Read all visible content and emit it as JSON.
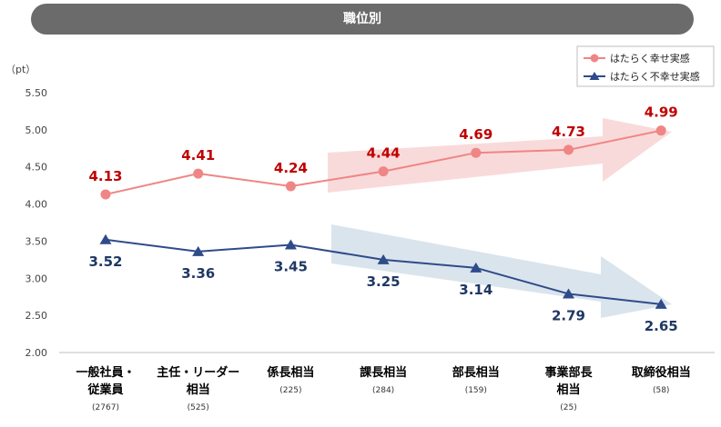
{
  "header": {
    "title": "職位別"
  },
  "chart_data": {
    "type": "line",
    "title": "職位別",
    "ylabel": "（pt）",
    "ylim": [
      2.0,
      5.5
    ],
    "yticks": [
      "5.50",
      "5.00",
      "4.50",
      "4.00",
      "3.50",
      "3.00",
      "2.50",
      "2.00"
    ],
    "categories": [
      {
        "lines": [
          "一般社員・",
          "従業員"
        ],
        "count": "(2767)"
      },
      {
        "lines": [
          "主任・リーダー",
          "相当"
        ],
        "count": "(525)"
      },
      {
        "lines": [
          "係長相当"
        ],
        "count": "(225)"
      },
      {
        "lines": [
          "課長相当"
        ],
        "count": "(284)"
      },
      {
        "lines": [
          "部長相当"
        ],
        "count": "(159)"
      },
      {
        "lines": [
          "事業部長",
          "相当"
        ],
        "count": "(25)"
      },
      {
        "lines": [
          "取締役相当"
        ],
        "count": "(58)"
      }
    ],
    "series": [
      {
        "name": "はたらく幸せ実感",
        "color": "#f08585",
        "labelColor": "#c00000",
        "marker": "circle",
        "values": [
          4.13,
          4.41,
          4.24,
          4.44,
          4.69,
          4.73,
          4.99
        ],
        "labels": [
          "4.13",
          "4.41",
          "4.24",
          "4.44",
          "4.69",
          "4.73",
          "4.99"
        ]
      },
      {
        "name": "はたらく不幸せ実感",
        "color": "#2e4b8a",
        "labelColor": "#1f3864",
        "marker": "triangle",
        "values": [
          3.52,
          3.36,
          3.45,
          3.25,
          3.14,
          2.79,
          2.65
        ],
        "labels": [
          "3.52",
          "3.36",
          "3.45",
          "3.25",
          "3.14",
          "2.79",
          "2.65"
        ]
      }
    ],
    "legend": "top-right",
    "grid": false
  }
}
